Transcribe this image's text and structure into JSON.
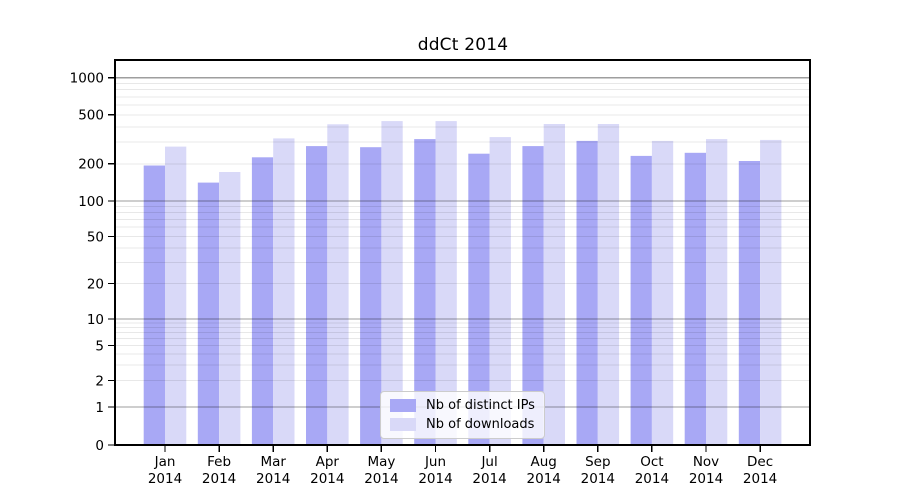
{
  "chart_data": {
    "type": "bar",
    "title": "ddCt 2014",
    "categories": [
      "Jan",
      "Feb",
      "Mar",
      "Apr",
      "May",
      "Jun",
      "Jul",
      "Aug",
      "Sep",
      "Oct",
      "Nov",
      "Dec"
    ],
    "year_label": "2014",
    "series": [
      {
        "name": "Nb of distinct IPs",
        "color": "#a8a8f5",
        "values": [
          194,
          141,
          226,
          279,
          273,
          318,
          242,
          279,
          307,
          232,
          246,
          211
        ]
      },
      {
        "name": "Nb of downloads",
        "color": "#d9d9f8",
        "values": [
          276,
          172,
          322,
          419,
          445,
          445,
          330,
          421,
          421,
          307,
          318,
          313
        ]
      }
    ],
    "yscale": "symlog",
    "y_ticks": [
      1000,
      500,
      200,
      100,
      50,
      20,
      10,
      5,
      2,
      1,
      0
    ],
    "ylim": [
      0,
      1400
    ],
    "xlabel": "",
    "ylabel": "",
    "grid": {
      "minor": true,
      "major": true
    },
    "legend_position": "lower center"
  }
}
